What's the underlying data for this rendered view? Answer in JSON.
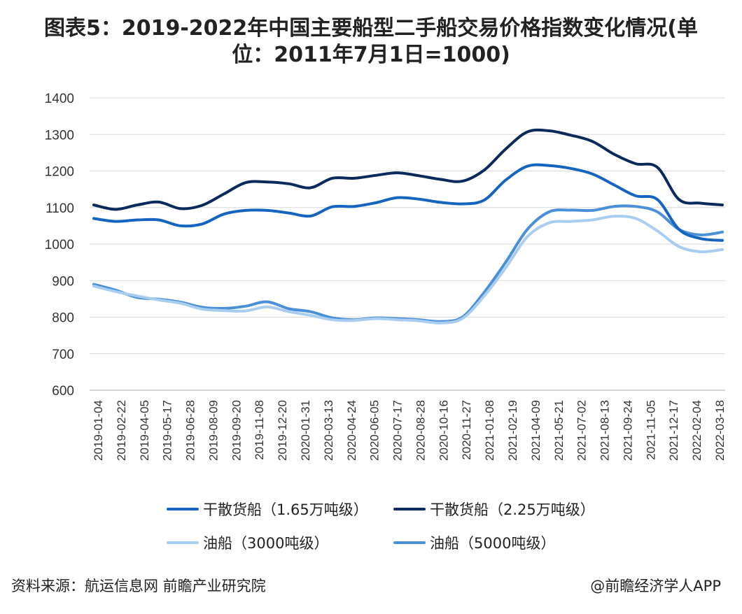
{
  "page": {
    "title_line1": "图表5：2019-2022年中国主要船型二手船交易价格指数变化情况(单",
    "title_line2": "位：2011年7月1日=1000)",
    "source": "资料来源：航运信息网 前瞻产业研究院",
    "brand": "@前瞻经济学人APP"
  },
  "chart_data": {
    "type": "line",
    "ylim": [
      600,
      1400
    ],
    "yticks": [
      600,
      700,
      800,
      900,
      1000,
      1100,
      1200,
      1300,
      1400
    ],
    "grid": true,
    "legend_position": "bottom",
    "x_tick_labels": [
      "2019-01-04",
      "2019-02-22",
      "2019-04-05",
      "2019-05-17",
      "2019-06-28",
      "2019-08-09",
      "2019-09-20",
      "2019-11-08",
      "2019-12-20",
      "2020-01-31",
      "2020-03-13",
      "2020-04-24",
      "2020-06-05",
      "2020-07-17",
      "2020-08-28",
      "2020-10-16",
      "2020-11-27",
      "2021-01-08",
      "2021-02-19",
      "2021-04-09",
      "2021-05-21",
      "2021-07-02",
      "2021-08-13",
      "2021-09-24",
      "2021-11-05",
      "2021-12-17",
      "2022-02-04",
      "2022-03-18"
    ],
    "series": [
      {
        "name": "干散货船（1.65万吨级）",
        "color": "#1565c0",
        "values": [
          1070,
          1062,
          1066,
          1066,
          1050,
          1055,
          1082,
          1092,
          1092,
          1085,
          1077,
          1102,
          1103,
          1113,
          1127,
          1123,
          1114,
          1110,
          1120,
          1175,
          1213,
          1215,
          1207,
          1192,
          1162,
          1132,
          1122,
          1040,
          1015,
          1010
        ]
      },
      {
        "name": "干散货船（2.25万吨级）",
        "color": "#0b2a5c",
        "values": [
          1107,
          1095,
          1107,
          1115,
          1097,
          1106,
          1137,
          1168,
          1170,
          1165,
          1154,
          1180,
          1180,
          1188,
          1195,
          1187,
          1177,
          1172,
          1202,
          1260,
          1307,
          1310,
          1298,
          1281,
          1246,
          1220,
          1210,
          1122,
          1112,
          1107
        ]
      },
      {
        "name": "油船（3000吨级）",
        "color": "#a9cdef",
        "values": [
          885,
          870,
          858,
          847,
          838,
          822,
          818,
          817,
          828,
          815,
          805,
          793,
          791,
          796,
          793,
          790,
          784,
          796,
          857,
          935,
          1020,
          1058,
          1062,
          1066,
          1076,
          1070,
          1036,
          993,
          979,
          985
        ]
      },
      {
        "name": "油船（5000吨级）",
        "color": "#4a90d9",
        "values": [
          890,
          874,
          854,
          849,
          841,
          827,
          824,
          830,
          842,
          823,
          815,
          798,
          793,
          798,
          796,
          793,
          788,
          800,
          867,
          950,
          1040,
          1088,
          1093,
          1092,
          1103,
          1103,
          1088,
          1040,
          1025,
          1033
        ]
      }
    ]
  }
}
